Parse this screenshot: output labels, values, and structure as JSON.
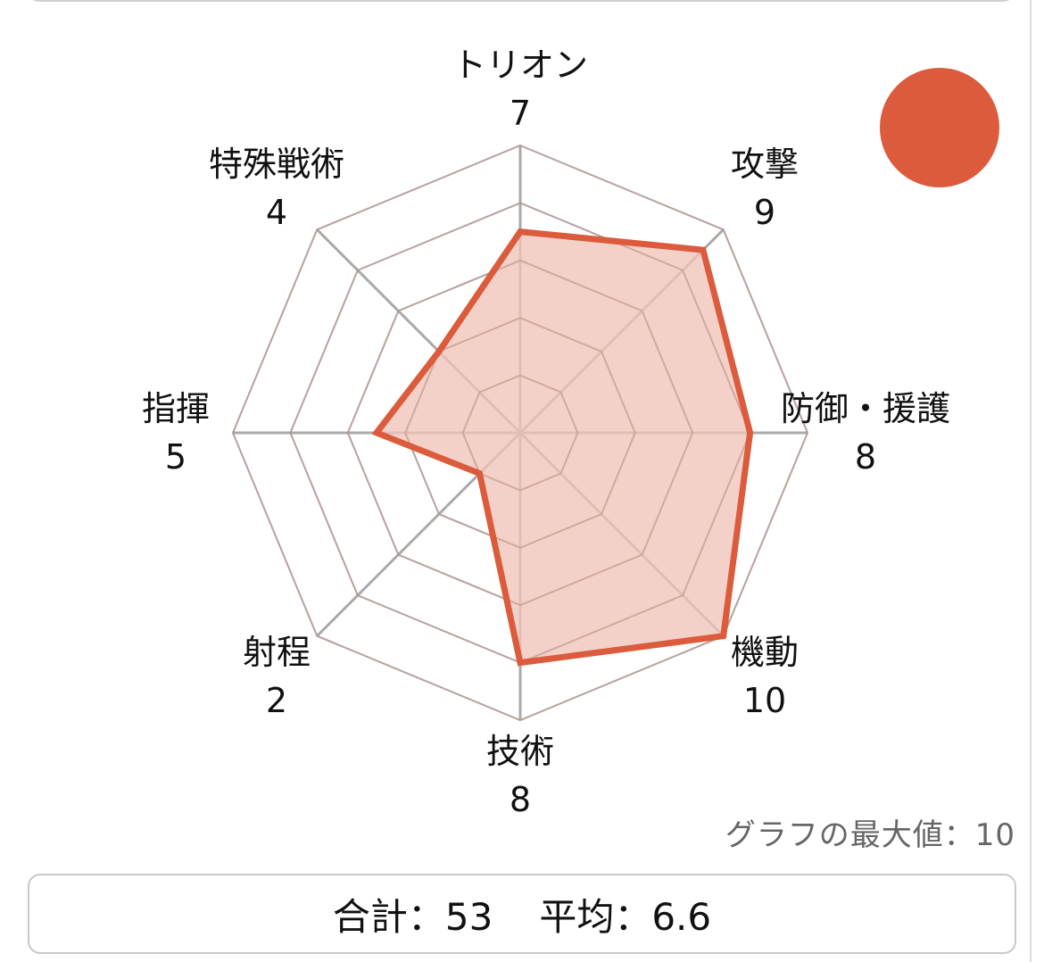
{
  "chart_data": {
    "type": "radar",
    "axes": [
      {
        "label": "トリオン",
        "value": 7
      },
      {
        "label": "攻撃",
        "value": 9
      },
      {
        "label": "防御・援護",
        "value": 8
      },
      {
        "label": "機動",
        "value": 10
      },
      {
        "label": "技術",
        "value": 8
      },
      {
        "label": "射程",
        "value": 2
      },
      {
        "label": "指揮",
        "value": 5
      },
      {
        "label": "特殊戦術",
        "value": 4
      }
    ],
    "rmax": 10,
    "grid_levels": 5,
    "series_color": "#db5b3c",
    "fill_color": "#f0c4b8",
    "grid_color": "#bbbbbb"
  },
  "max_note": "グラフの最大値：10",
  "summary": {
    "total_text": "合計：53",
    "average_text": "平均：6.6"
  }
}
